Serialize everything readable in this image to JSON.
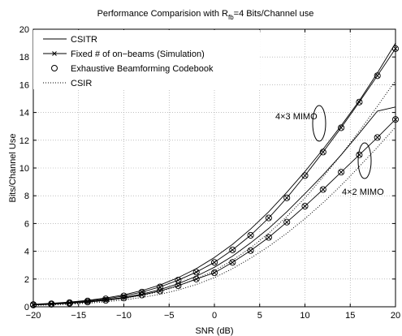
{
  "chart_data": {
    "type": "line",
    "title": "Performance Comparision with R",
    "title_sub": "fb",
    "title_rest": "=4 Bits/Channel use",
    "xlabel": "SNR (dB)",
    "ylabel": "Bits/Channel Use",
    "xlim": [
      -20,
      20
    ],
    "ylim": [
      0,
      20
    ],
    "xticks": [
      -20,
      -15,
      -10,
      -5,
      0,
      5,
      10,
      15,
      20
    ],
    "yticks": [
      0,
      2,
      4,
      6,
      8,
      10,
      12,
      14,
      16,
      18,
      20
    ],
    "grid": true,
    "legend_position": "top-left",
    "legend": [
      "CSITR",
      "Fixed # of on−beams (Simulation)",
      "Exhaustive Beamforming Codebook",
      "CSIR"
    ],
    "annotations": [
      "4×3 MIMO",
      "4×2 MIMO"
    ],
    "x": [
      -20,
      -18,
      -16,
      -14,
      -12,
      -10,
      -8,
      -6,
      -4,
      -2,
      0,
      2,
      4,
      6,
      8,
      10,
      12,
      14,
      16,
      18,
      20
    ],
    "series": [
      {
        "legend_index": 0,
        "style": "solid",
        "marker": "none",
        "values": [
          0.18,
          0.25,
          0.34,
          0.46,
          0.63,
          0.86,
          1.17,
          1.57,
          2.1,
          2.75,
          3.55,
          4.5,
          5.6,
          6.85,
          8.25,
          9.75,
          11.35,
          13.05,
          14.85,
          16.85,
          19.0
        ]
      },
      {
        "legend_index": 1,
        "style": "solid",
        "marker": "x",
        "values": [
          0.16,
          0.22,
          0.3,
          0.42,
          0.57,
          0.78,
          1.06,
          1.43,
          1.92,
          2.5,
          3.2,
          4.1,
          5.15,
          6.4,
          7.85,
          9.45,
          11.15,
          12.9,
          14.75,
          16.65,
          18.6
        ]
      },
      {
        "legend_index": 2,
        "style": "none",
        "marker": "o",
        "values": [
          0.16,
          0.22,
          0.3,
          0.42,
          0.57,
          0.78,
          1.06,
          1.43,
          1.92,
          2.5,
          3.2,
          4.1,
          5.15,
          6.4,
          7.85,
          9.45,
          11.15,
          12.9,
          14.75,
          16.65,
          18.6
        ]
      },
      {
        "legend_index": 3,
        "style": "dotted",
        "marker": "none",
        "values": [
          0.12,
          0.17,
          0.23,
          0.32,
          0.44,
          0.6,
          0.82,
          1.1,
          1.5,
          2.0,
          2.6,
          3.35,
          4.25,
          5.3,
          6.5,
          7.85,
          9.35,
          10.95,
          12.65,
          14.45,
          16.3
        ]
      },
      {
        "legend_index": 0,
        "style": "solid",
        "marker": "none",
        "values": [
          0.15,
          0.2,
          0.27,
          0.37,
          0.5,
          0.68,
          0.92,
          1.24,
          1.66,
          2.2,
          2.85,
          3.65,
          4.6,
          5.65,
          6.85,
          8.15,
          9.5,
          10.95,
          12.5,
          14.1,
          14.4
        ]
      },
      {
        "legend_index": 1,
        "style": "solid",
        "marker": "x",
        "values": [
          0.13,
          0.18,
          0.25,
          0.34,
          0.46,
          0.63,
          0.85,
          1.14,
          1.52,
          2.0,
          2.45,
          3.2,
          4.05,
          5.0,
          6.1,
          7.25,
          8.45,
          9.7,
          10.95,
          12.2,
          13.5
        ]
      },
      {
        "legend_index": 2,
        "style": "none",
        "marker": "o",
        "values": [
          0.13,
          0.18,
          0.25,
          0.34,
          0.46,
          0.63,
          0.85,
          1.14,
          1.52,
          2.0,
          2.45,
          3.2,
          4.05,
          5.0,
          6.1,
          7.25,
          8.45,
          9.7,
          10.95,
          12.2,
          13.5
        ]
      },
      {
        "legend_index": 3,
        "style": "dotted",
        "marker": "none",
        "values": [
          0.1,
          0.14,
          0.19,
          0.26,
          0.36,
          0.49,
          0.67,
          0.9,
          1.21,
          1.6,
          2.1,
          2.75,
          3.5,
          4.35,
          5.3,
          6.35,
          7.5,
          8.75,
          10.1,
          11.5,
          12.95
        ]
      }
    ]
  }
}
